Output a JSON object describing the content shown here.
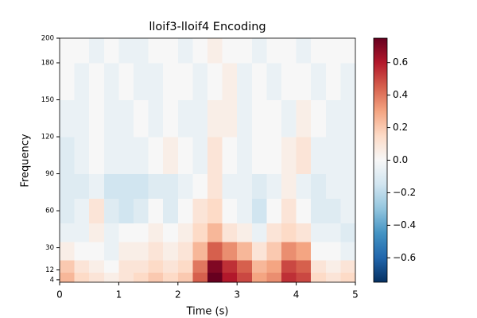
{
  "chart_data": {
    "type": "heatmap",
    "title": "lloif3-lloif4 Encoding",
    "xlabel": "Time (s)",
    "ylabel": "Frequency",
    "xbins": [
      0,
      0.25,
      0.5,
      0.75,
      1,
      1.25,
      1.5,
      1.75,
      2,
      2.25,
      2.5,
      2.75,
      3,
      3.25,
      3.5,
      3.75,
      4,
      4.25,
      4.5,
      4.75,
      5
    ],
    "ybins": [
      2,
      10,
      20,
      35,
      50,
      70,
      90,
      120,
      150,
      180,
      200
    ],
    "values": [
      [
        0.25,
        0.15,
        0.1,
        0.05,
        0.1,
        0.15,
        0.2,
        0.15,
        0.2,
        0.45,
        0.75,
        0.6,
        0.5,
        0.3,
        0.35,
        0.55,
        0.5,
        0.15,
        0.1,
        0.15
      ],
      [
        0.2,
        0.1,
        0.05,
        0.0,
        0.1,
        0.1,
        0.15,
        0.1,
        0.15,
        0.4,
        0.7,
        0.55,
        0.45,
        0.25,
        0.3,
        0.5,
        0.45,
        0.1,
        0.05,
        0.1
      ],
      [
        0.05,
        0.0,
        0.0,
        -0.05,
        0.05,
        0.05,
        0.1,
        0.05,
        0.1,
        0.25,
        0.45,
        0.35,
        0.25,
        0.1,
        0.2,
        0.35,
        0.3,
        0.0,
        0.0,
        -0.05
      ],
      [
        -0.05,
        -0.05,
        0.05,
        -0.05,
        0.0,
        0.0,
        0.05,
        0.0,
        0.05,
        0.15,
        0.25,
        0.1,
        0.05,
        -0.05,
        0.1,
        0.15,
        0.1,
        -0.05,
        -0.05,
        -0.1
      ],
      [
        -0.1,
        -0.05,
        0.1,
        -0.1,
        -0.15,
        -0.1,
        0.0,
        -0.1,
        0.0,
        0.1,
        0.15,
        0.0,
        -0.05,
        -0.15,
        0.0,
        0.1,
        0.0,
        -0.1,
        -0.1,
        -0.05
      ],
      [
        -0.1,
        -0.1,
        -0.05,
        -0.15,
        -0.15,
        -0.15,
        -0.1,
        -0.1,
        -0.05,
        0.0,
        0.1,
        -0.05,
        -0.05,
        -0.1,
        -0.05,
        0.05,
        -0.05,
        -0.1,
        -0.05,
        -0.05
      ],
      [
        -0.1,
        -0.05,
        0.0,
        -0.05,
        -0.05,
        -0.05,
        0.0,
        0.05,
        0.0,
        -0.05,
        0.1,
        0.0,
        -0.05,
        0.0,
        0.0,
        0.05,
        0.1,
        -0.05,
        -0.05,
        -0.05
      ],
      [
        -0.05,
        -0.05,
        0.0,
        -0.05,
        -0.05,
        0.0,
        -0.05,
        0.0,
        -0.05,
        -0.05,
        0.05,
        0.05,
        -0.05,
        0.0,
        0.0,
        -0.05,
        0.05,
        0.0,
        -0.05,
        -0.05
      ],
      [
        0.0,
        -0.05,
        0.0,
        -0.05,
        0.0,
        -0.05,
        -0.05,
        0.0,
        0.0,
        -0.05,
        0.0,
        0.05,
        -0.05,
        0.0,
        -0.05,
        0.0,
        0.0,
        -0.05,
        0.0,
        -0.05
      ],
      [
        0.0,
        0.0,
        -0.05,
        0.0,
        -0.05,
        -0.05,
        0.0,
        0.0,
        -0.05,
        0.0,
        0.05,
        0.0,
        0.0,
        -0.05,
        0.0,
        0.0,
        -0.05,
        0.0,
        0.0,
        0.0
      ]
    ],
    "xlim": [
      0,
      5
    ],
    "xticks": [
      0,
      1,
      2,
      3,
      4,
      5
    ],
    "ylim": [
      2,
      200
    ],
    "yticks": [
      4,
      12,
      30,
      60,
      90,
      120,
      150,
      180,
      200
    ],
    "colormap": "RdBu_r",
    "clim": [
      -0.75,
      0.75
    ],
    "cticks": [
      {
        "value": -0.6,
        "label": "−0.6"
      },
      {
        "value": -0.4,
        "label": "−0.4"
      },
      {
        "value": -0.2,
        "label": "−0.2"
      },
      {
        "value": 0,
        "label": "0.0"
      },
      0.2,
      0.4,
      0.6
    ]
  }
}
